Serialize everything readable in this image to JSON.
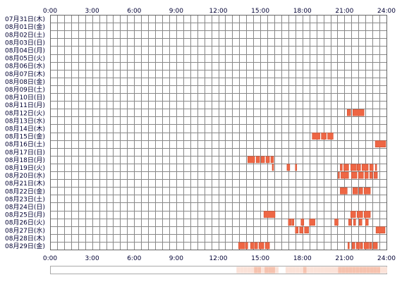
{
  "chart_data": {
    "type": "heatmap",
    "x_unit": "hour of day",
    "x_range": [
      0,
      24
    ],
    "x_ticks": [
      "0:00",
      "3:00",
      "6:00",
      "9:00",
      "12:00",
      "15:00",
      "18:00",
      "21:00",
      "24:00"
    ],
    "rows": [
      {
        "label": "07月31日(木)",
        "intervals": []
      },
      {
        "label": "08月01日(金)",
        "intervals": []
      },
      {
        "label": "08月02日(土)",
        "intervals": []
      },
      {
        "label": "08月03日(日)",
        "intervals": []
      },
      {
        "label": "08月04日(月)",
        "intervals": []
      },
      {
        "label": "08月05日(火)",
        "intervals": []
      },
      {
        "label": "08月06日(水)",
        "intervals": []
      },
      {
        "label": "08月07日(木)",
        "intervals": []
      },
      {
        "label": "08月08日(金)",
        "intervals": []
      },
      {
        "label": "08月09日(土)",
        "intervals": []
      },
      {
        "label": "08月10日(日)",
        "intervals": []
      },
      {
        "label": "08月11日(月)",
        "intervals": []
      },
      {
        "label": "08月12日(火)",
        "intervals": [
          [
            21.2,
            21.45
          ],
          [
            21.6,
            22.4
          ]
        ]
      },
      {
        "label": "08月13日(水)",
        "intervals": []
      },
      {
        "label": "08月14日(木)",
        "intervals": []
      },
      {
        "label": "08月15日(金)",
        "intervals": [
          [
            18.7,
            19.25
          ],
          [
            19.35,
            19.7
          ],
          [
            19.8,
            20.2
          ]
        ]
      },
      {
        "label": "08月16日(土)",
        "intervals": [
          [
            23.2,
            23.95
          ]
        ]
      },
      {
        "label": "08月17日(日)",
        "intervals": []
      },
      {
        "label": "08月18日(月)",
        "intervals": [
          [
            14.1,
            14.6
          ],
          [
            14.7,
            14.95
          ],
          [
            15.05,
            15.3
          ],
          [
            15.4,
            15.65
          ],
          [
            15.75,
            15.95
          ]
        ]
      },
      {
        "label": "08月19日(火)",
        "intervals": [
          [
            15.85,
            15.95
          ],
          [
            16.9,
            17.1
          ],
          [
            17.5,
            17.6
          ],
          [
            20.7,
            20.85
          ],
          [
            20.95,
            21.3
          ],
          [
            21.45,
            21.85
          ],
          [
            21.9,
            22.15
          ],
          [
            22.25,
            22.7
          ],
          [
            22.8,
            23.05
          ],
          [
            23.2,
            23.3
          ]
        ]
      },
      {
        "label": "08月20日(水)",
        "intervals": [
          [
            20.55,
            20.65
          ],
          [
            20.75,
            21.3
          ],
          [
            21.5,
            21.9
          ],
          [
            22.0,
            22.35
          ],
          [
            22.45,
            22.7
          ],
          [
            22.8,
            23.0
          ],
          [
            23.1,
            23.35
          ]
        ]
      },
      {
        "label": "08月21日(木)",
        "intervals": []
      },
      {
        "label": "08月22日(金)",
        "intervals": [
          [
            20.7,
            21.2
          ],
          [
            21.6,
            21.95
          ],
          [
            22.05,
            22.3
          ],
          [
            22.4,
            22.85
          ]
        ]
      },
      {
        "label": "08月23日(土)",
        "intervals": []
      },
      {
        "label": "08月24日(日)",
        "intervals": []
      },
      {
        "label": "08月25日(月)",
        "intervals": [
          [
            15.25,
            16.05
          ],
          [
            21.45,
            21.8
          ],
          [
            21.9,
            22.3
          ],
          [
            22.4,
            22.85
          ]
        ]
      },
      {
        "label": "08月26日(火)",
        "intervals": [
          [
            17.0,
            17.2
          ],
          [
            17.25,
            17.4
          ],
          [
            17.9,
            18.1
          ],
          [
            18.5,
            18.9
          ],
          [
            20.3,
            20.55
          ],
          [
            21.3,
            21.5
          ],
          [
            21.65,
            21.8
          ],
          [
            22.05,
            22.25
          ],
          [
            22.5,
            22.7
          ]
        ]
      },
      {
        "label": "08月27日(水)",
        "intervals": [
          [
            17.5,
            17.7
          ],
          [
            17.8,
            18.05
          ],
          [
            18.15,
            18.45
          ],
          [
            23.25,
            23.9
          ]
        ]
      },
      {
        "label": "08月28日(木)",
        "intervals": []
      },
      {
        "label": "08月29日(金)",
        "intervals": [
          [
            13.45,
            13.9
          ],
          [
            13.95,
            14.1
          ],
          [
            14.3,
            14.55
          ],
          [
            14.6,
            14.8
          ],
          [
            14.9,
            15.25
          ],
          [
            15.35,
            15.65
          ],
          [
            21.25,
            21.35
          ],
          [
            21.55,
            21.75
          ],
          [
            21.85,
            22.1
          ],
          [
            22.15,
            22.3
          ],
          [
            22.4,
            22.75
          ],
          [
            22.8,
            22.95
          ],
          [
            23.05,
            23.35
          ]
        ]
      }
    ],
    "colors": {
      "bar": "#ee6644",
      "bar_stroke": "#cc4422",
      "grid": "#888888",
      "summary_light": "#fbe2d8",
      "summary_mid": "#f6c2ae",
      "label": "#000033"
    }
  }
}
